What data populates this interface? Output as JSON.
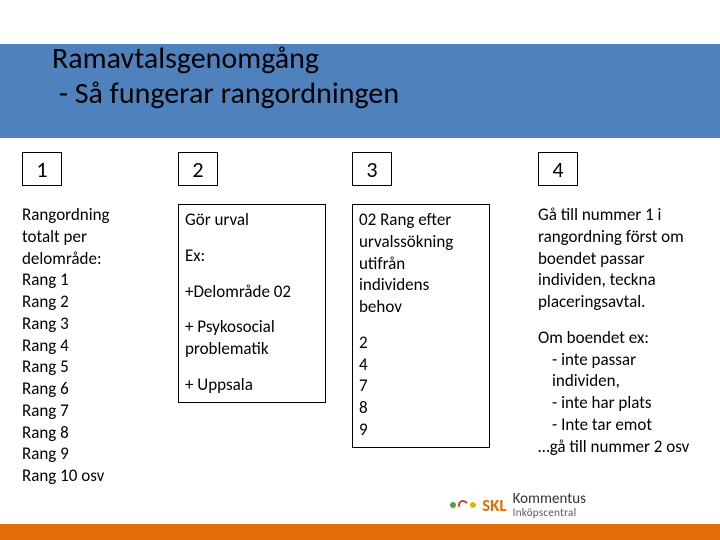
{
  "colors": {
    "header_band": "#4f81bd",
    "footer_bar": "#e36c0a",
    "text": "#000000",
    "logo_skl": "#e36c0a",
    "logo_dot1": "#5aa02c",
    "logo_dot2": "#e8b200",
    "logo_arc": "#d93a2b",
    "logo_kommentus": "#333333",
    "logo_sub": "#555555"
  },
  "typography": {
    "title_fontsize": 30,
    "numbox_fontsize": 22,
    "body_fontsize": 17,
    "logo_skl_fontsize": 17,
    "logo_kom_fontsize": 15,
    "logo_sub_fontsize": 11
  },
  "layout": {
    "numbox": {
      "width": 40,
      "height": 34
    },
    "col2_box_width": 148,
    "col3_box_width": 138
  },
  "title": {
    "line1": "Ramavtalsgenomgång",
    "line2": " - Så fungerar rangordningen"
  },
  "columns": [
    {
      "num": "1",
      "boxed": false,
      "paras": [
        {
          "lines": [
            "Rangordning",
            "totalt per",
            "delområde:",
            "Rang 1",
            "Rang 2",
            "Rang 3",
            "Rang 4",
            "Rang 5",
            "Rang 6",
            "Rang 7",
            "Rang 8",
            "Rang 9",
            "Rang 10 osv"
          ]
        }
      ]
    },
    {
      "num": "2",
      "boxed": true,
      "paras": [
        {
          "lines": [
            "Gör urval"
          ]
        },
        {
          "lines": [
            "Ex:"
          ]
        },
        {
          "lines": [
            "+Delområde 02"
          ]
        },
        {
          "lines": [
            "+ Psykosocial",
            "problematik"
          ]
        },
        {
          "lines": [
            "+ Uppsala"
          ]
        }
      ]
    },
    {
      "num": "3",
      "boxed": true,
      "paras": [
        {
          "lines": [
            "02 Rang efter",
            "urvalssökning",
            "utifrån",
            "individens",
            "behov"
          ]
        },
        {
          "lines": [
            "2",
            "4",
            "7",
            "8",
            "9"
          ]
        }
      ]
    },
    {
      "num": "4",
      "boxed": false,
      "paras": [
        {
          "lines": [
            "Gå till nummer 1 i",
            "rangordning först om",
            "boendet passar",
            "individen, teckna",
            "placeringsavtal."
          ]
        },
        {
          "lines": [
            "Om boendet ex:"
          ],
          "bullets": [
            "inte passar individen,",
            "inte har plats",
            "Inte tar emot"
          ],
          "tail": "…gå till nummer 2 osv"
        }
      ]
    }
  ],
  "logo": {
    "skl": "SKL",
    "kommentus": "Kommentus",
    "sub": "Inköpscentral"
  }
}
